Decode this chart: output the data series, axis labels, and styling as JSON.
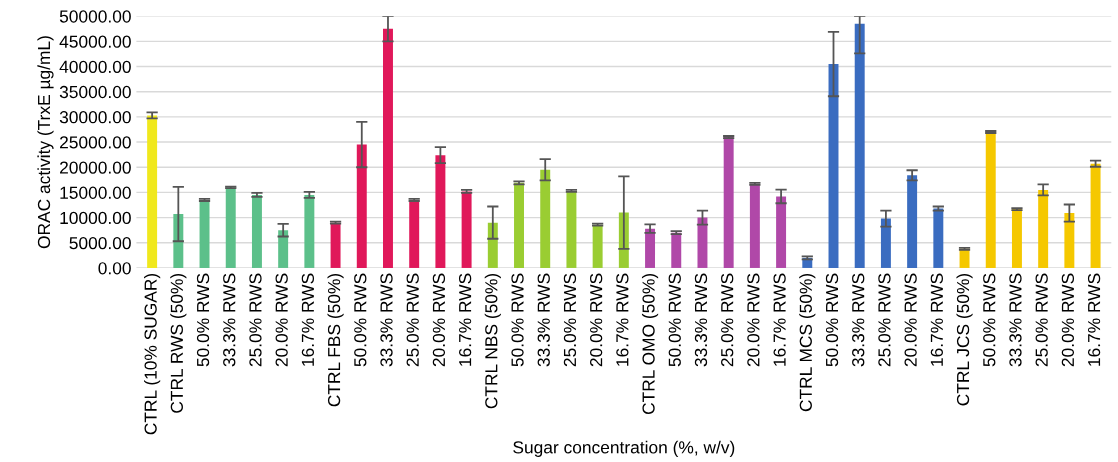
{
  "chart_data": {
    "type": "bar",
    "xlabel": "Sugar concentration (%, w/v)",
    "ylabel": "ORAC activity (TrxE µg/mL)",
    "categories": [
      "CTRL (10% SUGAR)",
      "CTRL RWS (50%)",
      "50.0% RWS",
      "33.3% RWS",
      "25.0% RWS",
      "20.0% RWS",
      "16.7% RWS",
      "CTRL FBS (50%)",
      "50.0% RWS",
      "33.3% RWS",
      "25.0% RWS",
      "20.0% RWS",
      "16.7% RWS",
      "CTRL NBS (50%)",
      "50.0% RWS",
      "33.3% RWS",
      "25.0% RWS",
      "20.0% RWS",
      "16.7% RWS",
      "CTRL OMO (50%)",
      "50.0% RWS",
      "33.3% RWS",
      "25.0% RWS",
      "20.0% RWS",
      "16.7% RWS",
      "CTRL MCS (50%)",
      "50.0% RWS",
      "33.3% RWS",
      "25.0% RWS",
      "20.0% RWS",
      "16.7% RWS",
      "CTRL JCS (50%)",
      "50.0% RWS",
      "33.3% RWS",
      "25.0% RWS",
      "20.0% RWS",
      "16.7% RWS"
    ],
    "values": [
      30300,
      10700,
      13500,
      16000,
      14500,
      7500,
      14500,
      9000,
      24500,
      47500,
      13500,
      22400,
      15200,
      9000,
      16900,
      19500,
      15300,
      8600,
      11000,
      7800,
      7000,
      10000,
      26000,
      16700,
      14200,
      2000,
      40500,
      48500,
      9800,
      18400,
      11800,
      3800,
      27000,
      11700,
      15500,
      10900,
      20700
    ],
    "errors": [
      600,
      5400,
      200,
      150,
      400,
      1250,
      600,
      200,
      4500,
      [
        45000,
        50000
      ],
      200,
      1600,
      300,
      3200,
      300,
      2100,
      200,
      200,
      7200,
      850,
      300,
      1400,
      200,
      200,
      1350,
      300,
      6400,
      [
        42600,
        50000
      ],
      1600,
      1000,
      400,
      200,
      200,
      200,
      1100,
      1700,
      600
    ],
    "colors": [
      "#f0e81c",
      "#5cc08a",
      "#5cc08a",
      "#5cc08a",
      "#5cc08a",
      "#5cc08a",
      "#5cc08a",
      "#e0185a",
      "#e0185a",
      "#e0185a",
      "#e0185a",
      "#e0185a",
      "#e0185a",
      "#9acd32",
      "#9acd32",
      "#9acd32",
      "#9acd32",
      "#9acd32",
      "#9acd32",
      "#b048a8",
      "#b048a8",
      "#b048a8",
      "#b048a8",
      "#b048a8",
      "#b048a8",
      "#3a6cc0",
      "#3a6cc0",
      "#3a6cc0",
      "#3a6cc0",
      "#3a6cc0",
      "#3a6cc0",
      "#f5c800",
      "#f5c800",
      "#f5c800",
      "#f5c800",
      "#f5c800",
      "#f5c800"
    ],
    "ylim": [
      0,
      50000
    ],
    "yticks": [
      {
        "value": 0,
        "label": "0.00"
      },
      {
        "value": 5000,
        "label": "5000.00"
      },
      {
        "value": 10000,
        "label": "10000.00"
      },
      {
        "value": 15000,
        "label": "15000.00"
      },
      {
        "value": 20000,
        "label": "20000.00"
      },
      {
        "value": 25000,
        "label": "25000.00"
      },
      {
        "value": 30000,
        "label": "30000.00"
      },
      {
        "value": 35000,
        "label": "35000.00"
      },
      {
        "value": 40000,
        "label": "40000.00"
      },
      {
        "value": 45000,
        "label": "45000.00"
      },
      {
        "value": 50000,
        "label": "50000.00"
      }
    ],
    "grid": "y"
  }
}
